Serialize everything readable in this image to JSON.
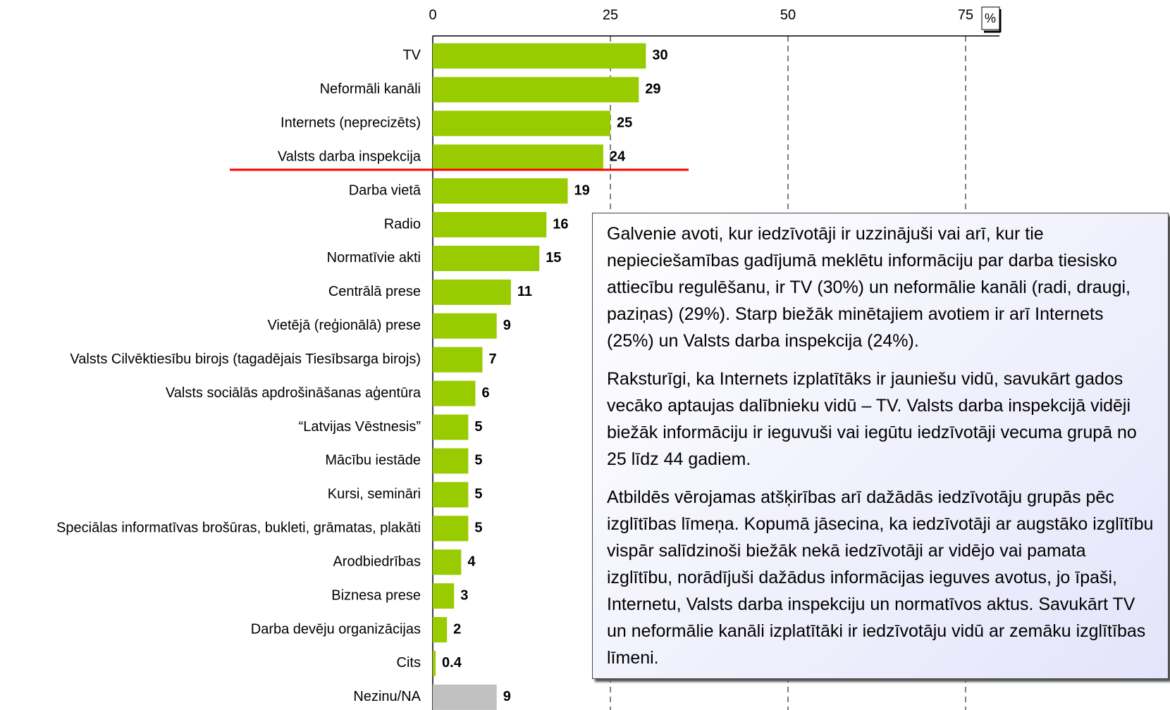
{
  "chart_data": {
    "type": "bar",
    "orientation": "horizontal",
    "categories": [
      "TV",
      "Neformāli kanāli",
      "Internets (neprecizēts)",
      "Valsts darba inspekcija",
      "Darba vietā",
      "Radio",
      "Normatīvie akti",
      "Centrālā prese",
      "Vietējā (reģionālā) prese",
      "Valsts Cilvēktiesību birojs (tagadējais Tiesībsarga birojs)",
      "Valsts sociālās apdrošināšanas aģentūra",
      "“Latvijas Vēstnesis”",
      "Mācību iestāde",
      "Kursi, semināri",
      "Speciālas informatīvas brošūras, bukleti, grāmatas, plakāti",
      "Arodbiedrības",
      "Biznesa prese",
      "Darba devēju organizācijas",
      "Cits",
      "Nezinu/NA"
    ],
    "values": [
      30,
      29,
      25,
      24,
      19,
      16,
      15,
      11,
      9,
      7,
      6,
      5,
      5,
      5,
      5,
      4,
      3,
      2,
      0.4,
      9
    ],
    "bar_colors": [
      "#99cc00",
      "#99cc00",
      "#99cc00",
      "#99cc00",
      "#99cc00",
      "#99cc00",
      "#99cc00",
      "#99cc00",
      "#99cc00",
      "#99cc00",
      "#99cc00",
      "#99cc00",
      "#99cc00",
      "#99cc00",
      "#99cc00",
      "#99cc00",
      "#99cc00",
      "#99cc00",
      "#99cc00",
      "#c0c0c0"
    ],
    "xlim": [
      0,
      75
    ],
    "xticks": [
      0,
      25,
      50,
      75
    ],
    "x_unit": "%",
    "grid": true
  },
  "text_box": {
    "paragraphs": [
      "Galvenie avoti, kur iedzīvotāji ir uzzinājuši vai arī, kur tie nepieciešamības gadījumā meklētu informāciju par darba tiesisko attiecību regulēšanu, ir TV (30%) un neformālie kanāli (radi, draugi, paziņas) (29%). Starp biežāk minētajiem avotiem ir arī Internets (25%) un Valsts darba inspekcija (24%).",
      "Raksturīgi, ka Internets izplatītāks ir jauniešu vidū, savukārt gados vecāko aptaujas dalībnieku vidū – TV. Valsts darba inspekcijā vidēji biežāk informāciju ir ieguvuši vai iegūtu iedzīvotāji vecuma grupā no 25 līdz 44 gadiem.",
      "Atbildēs vērojamas atšķirības arī dažādās iedzīvotāju grupās pēc izglītības līmeņa. Kopumā jāsecina, ka iedzīvotāji ar augstāko izglītību vispār salīdzinoši biežāk nekā iedzīvotāji ar vidējo vai pamata izglītību, norādījuši dažādus informācijas ieguves avotus, jo īpaši, Internetu, Valsts darba inspekciju un normatīvos aktus. Savukārt TV un neformālie kanāli izplatītāki ir iedzīvotāju vidū ar zemāku izglītības līmeni."
    ]
  }
}
